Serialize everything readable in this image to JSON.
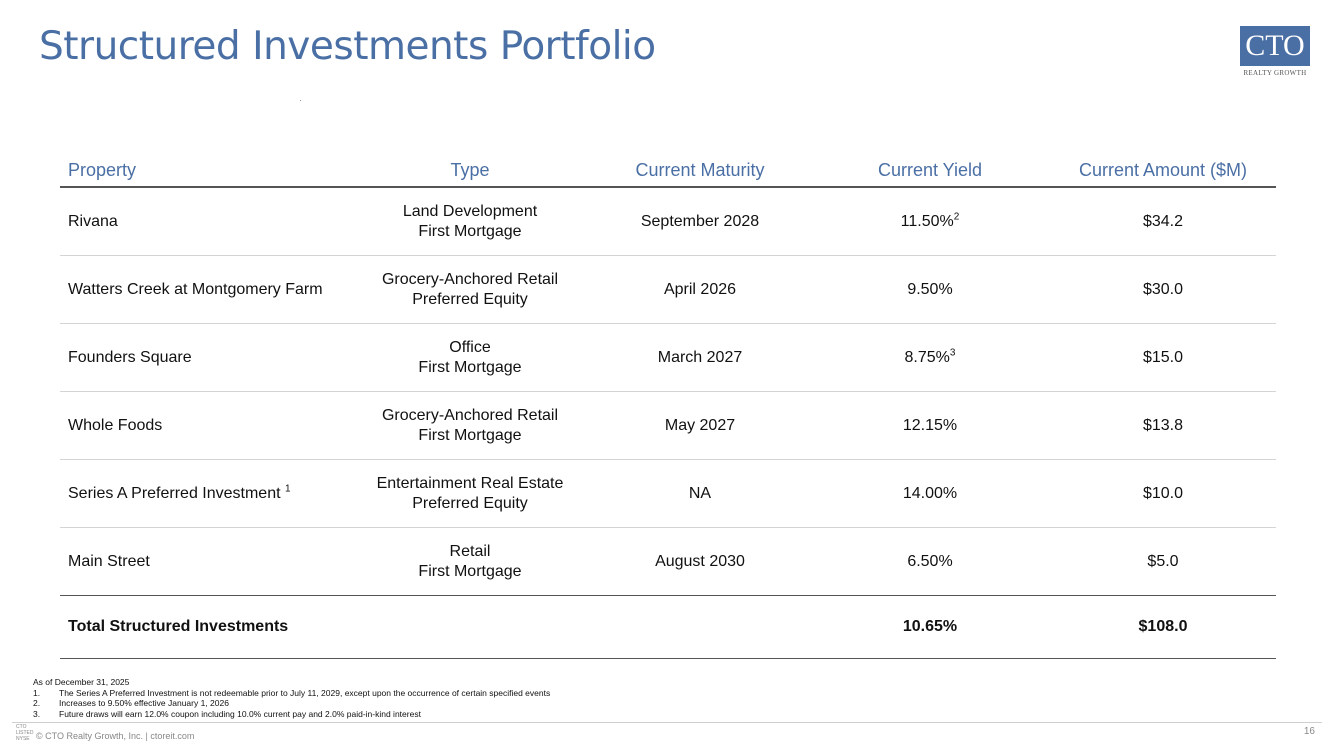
{
  "header": {
    "title": "Structured Investments Portfolio",
    "logo_text": "CTO",
    "logo_tagline": "REALTY GROWTH",
    "brand_color": "#4a6fa5"
  },
  "table": {
    "columns": [
      "Property",
      "Type",
      "Current Maturity",
      "Current Yield",
      "Current Amount ($M)"
    ],
    "rows": [
      {
        "property": "Rivana",
        "property_sup": "",
        "type_line1": "Land Development",
        "type_line2": "First Mortgage",
        "maturity": "September 2028",
        "yield": "11.50%",
        "yield_sup": "2",
        "amount": "$34.2"
      },
      {
        "property": "Watters Creek at Montgomery Farm",
        "property_sup": "",
        "type_line1": "Grocery-Anchored Retail",
        "type_line2": "Preferred Equity",
        "maturity": "April 2026",
        "yield": "9.50%",
        "yield_sup": "",
        "amount": "$30.0"
      },
      {
        "property": "Founders Square",
        "property_sup": "",
        "type_line1": "Office",
        "type_line2": "First Mortgage",
        "maturity": "March 2027",
        "yield": "8.75%",
        "yield_sup": "3",
        "amount": "$15.0"
      },
      {
        "property": "Whole Foods",
        "property_sup": "",
        "type_line1": "Grocery-Anchored Retail",
        "type_line2": "First Mortgage",
        "maturity": "May 2027",
        "yield": "12.15%",
        "yield_sup": "",
        "amount": "$13.8"
      },
      {
        "property": "Series A Preferred Investment",
        "property_sup": "1",
        "type_line1": "Entertainment Real Estate",
        "type_line2": "Preferred Equity",
        "maturity": "NA",
        "yield": "14.00%",
        "yield_sup": "",
        "amount": "$10.0"
      },
      {
        "property": "Main Street",
        "property_sup": "",
        "type_line1": "Retail",
        "type_line2": "First Mortgage",
        "maturity": "August 2030",
        "yield": "6.50%",
        "yield_sup": "",
        "amount": "$5.0"
      }
    ],
    "total": {
      "label": "Total Structured Investments",
      "yield": "10.65%",
      "amount": "$108.0"
    }
  },
  "notes": {
    "as_of": "As of December 31, 2025",
    "items": [
      {
        "num": "1.",
        "text": "The Series A Preferred Investment is not redeemable prior to July 11, 2029, except upon the occurrence of certain specified events"
      },
      {
        "num": "2.",
        "text": "Increases to 9.50% effective January 1, 2026"
      },
      {
        "num": "3.",
        "text": "Future draws will earn 12.0% coupon including 10.0% current pay and 2.0% paid-in-kind interest"
      }
    ]
  },
  "footer": {
    "exchange_cto": "CTO",
    "exchange_listed": "LISTED",
    "exchange_nyse": "NYSE",
    "text": "© CTO Realty Growth, Inc. | ctoreit.com",
    "page": "16"
  }
}
